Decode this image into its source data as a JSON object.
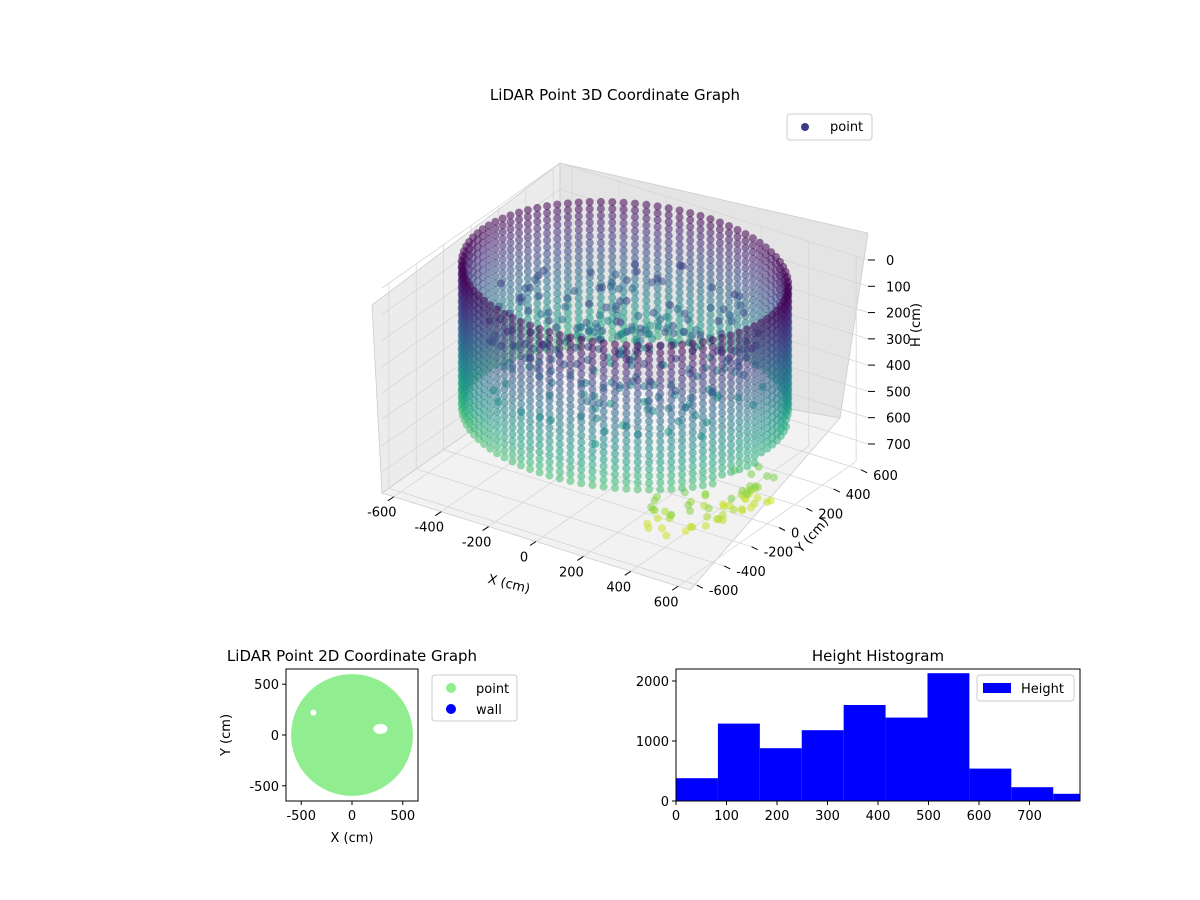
{
  "chart_data": [
    {
      "type": "scatter",
      "projection": "3d",
      "title": "LiDAR Point 3D Coordinate Graph",
      "xlabel": "X (cm)",
      "ylabel": "Y (cm)",
      "zlabel": "H (cm)",
      "xlim": [
        -650,
        650
      ],
      "ylim": [
        -650,
        650
      ],
      "zlim": [
        780,
        0
      ],
      "zaxis_inverted": true,
      "xticks": [
        "-600",
        "-400",
        "-200",
        "0",
        "200",
        "400",
        "600"
      ],
      "yticks": [
        "-600",
        "-400",
        "-200",
        "0",
        "200",
        "400",
        "600"
      ],
      "zticks": [
        "0",
        "100",
        "200",
        "300",
        "400",
        "500",
        "600",
        "700"
      ],
      "colormap": "viridis",
      "legend": {
        "placement": "upper right",
        "entries": [
          {
            "label": "point",
            "color": "#3b3c84"
          }
        ]
      },
      "series": [
        {
          "name": "point",
          "shape": "circular wall of points",
          "radius_cm": 600,
          "height_range_cm": [
            0,
            560
          ],
          "color_by": "height"
        }
      ]
    },
    {
      "type": "scatter",
      "title": "LiDAR Point 2D Coordinate Graph",
      "xlabel": "X (cm)",
      "ylabel": "Y (cm)",
      "xlim": [
        -650,
        650
      ],
      "ylim": [
        -650,
        650
      ],
      "xticks": [
        "-500",
        "0",
        "500"
      ],
      "yticks": [
        "-500",
        "0",
        "500"
      ],
      "legend": {
        "placement": "outside right",
        "entries": [
          {
            "label": "point",
            "color": "#90ee90"
          },
          {
            "label": "wall",
            "color": "#0000ff"
          }
        ]
      },
      "series": [
        {
          "name": "point",
          "color": "#90ee90",
          "shape": "filled disc",
          "center": [
            0,
            0
          ],
          "radius_cm": 600
        },
        {
          "name": "wall",
          "color": "#0000ff",
          "values": []
        }
      ]
    },
    {
      "type": "bar",
      "subtype": "histogram",
      "title": "Height Histogram",
      "xlim": [
        0,
        800
      ],
      "ylim": [
        0,
        2200
      ],
      "xticks": [
        "0",
        "100",
        "200",
        "300",
        "400",
        "500",
        "600",
        "700"
      ],
      "yticks": [
        "0",
        "1000",
        "2000"
      ],
      "bar_color": "#0000ff",
      "legend": {
        "placement": "upper right",
        "entries": [
          {
            "label": "Height",
            "color": "#0000ff"
          }
        ]
      },
      "bin_edges": [
        0,
        83,
        166,
        249,
        332,
        415,
        498,
        581,
        664,
        747,
        830
      ],
      "values": [
        380,
        1290,
        880,
        1180,
        1600,
        1390,
        2130,
        540,
        230,
        120
      ]
    }
  ]
}
